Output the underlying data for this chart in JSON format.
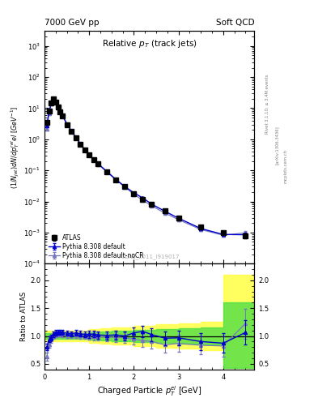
{
  "title_left": "7000 GeV pp",
  "title_right": "Soft QCD",
  "plot_title": "Relative $p_T$ (track jets)",
  "ylabel_main": "(1/Njet)dN/dp$^{rel}_{T}$el [GeV$^{-1}$]",
  "ylabel_ratio": "Ratio to ATLAS",
  "xlabel": "Charged Particle $p^{el}_{T}$ [GeV]",
  "watermark": "ATLAS_2011_I919017",
  "atlas_x": [
    0.05,
    0.1,
    0.15,
    0.2,
    0.25,
    0.3,
    0.35,
    0.4,
    0.5,
    0.6,
    0.7,
    0.8,
    0.9,
    1.0,
    1.1,
    1.2,
    1.4,
    1.6,
    1.8,
    2.0,
    2.2,
    2.4,
    2.7,
    3.0,
    3.5,
    4.0,
    4.5
  ],
  "atlas_y": [
    3.5,
    8.0,
    15.0,
    20.0,
    16.0,
    11.0,
    7.5,
    5.5,
    3.0,
    1.8,
    1.1,
    0.7,
    0.45,
    0.32,
    0.22,
    0.16,
    0.09,
    0.05,
    0.03,
    0.018,
    0.012,
    0.008,
    0.005,
    0.003,
    0.0015,
    0.001,
    0.0008
  ],
  "atlas_yerr": [
    0.4,
    0.7,
    1.0,
    1.3,
    1.0,
    0.7,
    0.45,
    0.35,
    0.18,
    0.12,
    0.07,
    0.05,
    0.035,
    0.025,
    0.018,
    0.013,
    0.007,
    0.004,
    0.0025,
    0.0015,
    0.001,
    0.0007,
    0.0004,
    0.00025,
    0.00015,
    0.0001,
    0.00015
  ],
  "py8def_x": [
    0.05,
    0.1,
    0.15,
    0.2,
    0.25,
    0.3,
    0.35,
    0.4,
    0.5,
    0.6,
    0.7,
    0.8,
    0.9,
    1.0,
    1.1,
    1.2,
    1.4,
    1.6,
    1.8,
    2.0,
    2.2,
    2.4,
    2.7,
    3.0,
    3.5,
    4.0,
    4.5
  ],
  "py8def_y": [
    2.8,
    7.5,
    14.5,
    20.5,
    17.0,
    11.8,
    8.0,
    5.9,
    3.15,
    1.88,
    1.16,
    0.73,
    0.462,
    0.33,
    0.228,
    0.163,
    0.091,
    0.051,
    0.03,
    0.019,
    0.013,
    0.0082,
    0.0048,
    0.0029,
    0.00135,
    0.00087,
    0.00085
  ],
  "py8def_yerr": [
    0.25,
    0.5,
    0.9,
    1.1,
    0.9,
    0.65,
    0.38,
    0.28,
    0.14,
    0.09,
    0.065,
    0.045,
    0.028,
    0.022,
    0.016,
    0.011,
    0.0065,
    0.0037,
    0.0022,
    0.0013,
    0.0009,
    0.0006,
    0.00035,
    0.00025,
    0.00012,
    9e-05,
    0.00012
  ],
  "py8nocr_x": [
    0.05,
    0.1,
    0.15,
    0.2,
    0.25,
    0.3,
    0.35,
    0.4,
    0.5,
    0.6,
    0.7,
    0.8,
    0.9,
    1.0,
    1.1,
    1.2,
    1.4,
    1.6,
    1.8,
    2.0,
    2.2,
    2.4,
    2.7,
    3.0,
    3.5,
    4.0,
    4.5
  ],
  "py8nocr_y": [
    2.2,
    6.8,
    14.0,
    20.0,
    16.5,
    11.5,
    7.8,
    5.7,
    3.05,
    1.83,
    1.13,
    0.71,
    0.45,
    0.32,
    0.22,
    0.158,
    0.088,
    0.049,
    0.029,
    0.017,
    0.011,
    0.0072,
    0.0042,
    0.0026,
    0.00125,
    0.00082,
    0.00098
  ],
  "py8nocr_yerr": [
    0.25,
    0.5,
    0.9,
    1.1,
    0.9,
    0.65,
    0.38,
    0.28,
    0.14,
    0.09,
    0.065,
    0.045,
    0.028,
    0.022,
    0.016,
    0.011,
    0.0065,
    0.0037,
    0.0022,
    0.0013,
    0.0009,
    0.0006,
    0.00035,
    0.00025,
    0.00012,
    9e-05,
    0.00014
  ],
  "ratio_py8def_x": [
    0.05,
    0.1,
    0.15,
    0.2,
    0.25,
    0.3,
    0.35,
    0.4,
    0.5,
    0.6,
    0.7,
    0.8,
    0.9,
    1.0,
    1.1,
    1.2,
    1.4,
    1.6,
    1.8,
    2.0,
    2.2,
    2.4,
    2.7,
    3.0,
    3.5,
    4.0,
    4.5
  ],
  "ratio_py8def_y": [
    0.8,
    0.94,
    0.97,
    1.03,
    1.06,
    1.07,
    1.07,
    1.07,
    1.05,
    1.04,
    1.055,
    1.04,
    1.027,
    1.03,
    1.036,
    1.019,
    1.011,
    1.02,
    1.0,
    1.056,
    1.083,
    1.025,
    0.96,
    0.967,
    0.9,
    0.87,
    1.063
  ],
  "ratio_py8def_yerr": [
    0.06,
    0.055,
    0.05,
    0.048,
    0.046,
    0.046,
    0.044,
    0.044,
    0.042,
    0.042,
    0.05,
    0.05,
    0.05,
    0.06,
    0.065,
    0.065,
    0.07,
    0.08,
    0.085,
    0.095,
    0.105,
    0.115,
    0.125,
    0.135,
    0.155,
    0.175,
    0.22
  ],
  "ratio_py8nocr_x": [
    0.05,
    0.1,
    0.15,
    0.2,
    0.25,
    0.3,
    0.35,
    0.4,
    0.5,
    0.6,
    0.7,
    0.8,
    0.9,
    1.0,
    1.1,
    1.2,
    1.4,
    1.6,
    1.8,
    2.0,
    2.2,
    2.4,
    2.7,
    3.0,
    3.5,
    4.0,
    4.5
  ],
  "ratio_py8nocr_y": [
    0.63,
    0.85,
    0.93,
    1.0,
    1.03,
    1.045,
    1.04,
    1.036,
    1.017,
    1.017,
    1.027,
    1.014,
    1.0,
    1.0,
    1.0,
    0.988,
    0.978,
    0.98,
    0.967,
    0.944,
    0.917,
    0.9,
    0.84,
    0.867,
    0.833,
    0.82,
    1.225
  ],
  "ratio_py8nocr_yerr": [
    0.07,
    0.065,
    0.06,
    0.058,
    0.056,
    0.056,
    0.054,
    0.054,
    0.05,
    0.05,
    0.058,
    0.058,
    0.058,
    0.068,
    0.073,
    0.073,
    0.078,
    0.088,
    0.093,
    0.103,
    0.113,
    0.123,
    0.135,
    0.148,
    0.168,
    0.188,
    0.27
  ],
  "band_yellow_x": [
    0.0,
    0.5,
    1.0,
    1.25,
    1.5,
    2.0,
    2.5,
    3.0,
    3.5,
    4.0,
    4.7
  ],
  "band_yellow_lo": [
    0.9,
    0.9,
    0.88,
    0.86,
    0.84,
    0.82,
    0.79,
    0.77,
    0.74,
    0.42,
    0.42
  ],
  "band_yellow_hi": [
    1.1,
    1.1,
    1.12,
    1.14,
    1.16,
    1.18,
    1.21,
    1.23,
    1.26,
    2.1,
    2.1
  ],
  "band_green_x": [
    0.0,
    0.5,
    1.0,
    1.25,
    1.5,
    2.0,
    2.5,
    3.0,
    3.5,
    4.0,
    4.7
  ],
  "band_green_lo": [
    0.95,
    0.95,
    0.94,
    0.92,
    0.91,
    0.89,
    0.87,
    0.855,
    0.84,
    0.42,
    0.42
  ],
  "band_green_hi": [
    1.05,
    1.05,
    1.06,
    1.08,
    1.09,
    1.11,
    1.13,
    1.145,
    1.16,
    1.6,
    1.6
  ],
  "color_atlas": "#000000",
  "color_py8def": "#0000cc",
  "color_py8nocr": "#7777bb",
  "color_yellow": "#ffff44",
  "color_green": "#44dd44",
  "xlim": [
    0.0,
    4.7
  ],
  "ylim_main": [
    0.0001,
    3000.0
  ],
  "ylim_ratio": [
    0.4,
    2.3
  ]
}
